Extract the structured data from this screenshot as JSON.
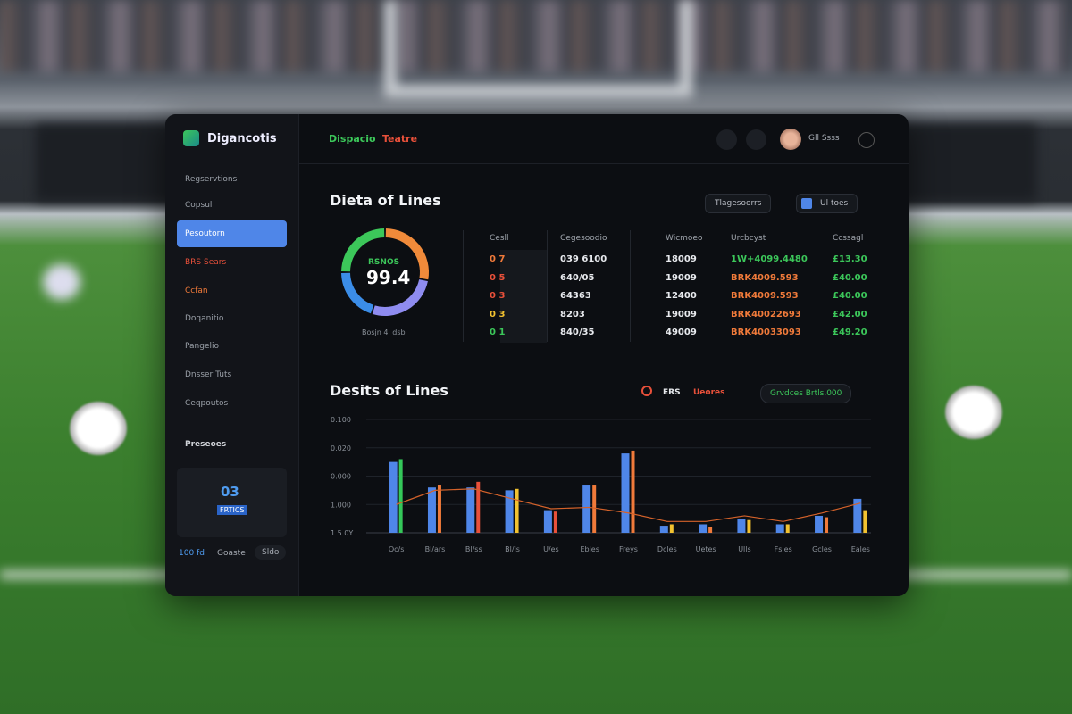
{
  "brand": "Digancotis",
  "header": {
    "title_a": "Dispacio",
    "title_b": "Teatre",
    "user": "Gll Ssss"
  },
  "sidebar": {
    "items": [
      "Regservtions",
      "Copsul",
      "Pesoutorn",
      "BRS Sears",
      "Ccfan",
      "Doqanitio",
      "Pangelio",
      "Dnsser Tuts",
      "Ceqpoutos"
    ],
    "section": "Preseoes",
    "card": {
      "value": "03",
      "label": "FRTICS"
    },
    "footer": [
      "100 fd",
      "Goaste",
      "Sldo"
    ]
  },
  "summary": {
    "title": "Dieta of Lines",
    "buttons": [
      "Tlagesoorrs",
      "Ul toes"
    ],
    "donut": {
      "label": "RSNOS",
      "value": 99.4,
      "caption": "Bosjn 4l dsb",
      "segments": [
        {
          "value": 28,
          "color": "#f08a3a"
        },
        {
          "value": 27,
          "color": "#8f8cf0"
        },
        {
          "value": 20,
          "color": "#3b8de8"
        },
        {
          "value": 25,
          "color": "#3cc75a"
        }
      ]
    }
  },
  "table": {
    "headers": [
      "Cesll",
      "Cegesoodio",
      "Wicmoeo",
      "Urcbcyst",
      "Ccssagl"
    ],
    "rows": [
      [
        "0 7",
        "039 6100",
        "18009",
        "1W+4099.4480",
        "£13.30"
      ],
      [
        "0 5",
        "640/05",
        "19009",
        "BRK4009.593",
        "£40.00"
      ],
      [
        "0 3",
        "64363",
        "12400",
        "BRK4009.593",
        "£40.00"
      ],
      [
        "0 3",
        "8203",
        "19009",
        "BRK40022693",
        "£42.00"
      ],
      [
        "0 1",
        "840/35",
        "49009",
        "BRK40033093",
        "£49.20"
      ]
    ]
  },
  "trend": {
    "title": "Desits of Lines",
    "dropdown": "Grvdces Brtls.000",
    "chart": {
      "type": "bar",
      "categories": [
        "Qc/s",
        "Bl/ars",
        "Bl/ss",
        "Bl/ls",
        "U/es",
        "Ebles",
        "Freys",
        "Dcles",
        "Uetes",
        "Ulls",
        "Fsles",
        "Gcles",
        "Eales"
      ],
      "series": [
        {
          "name": "ERS",
          "color": "#4f86e8",
          "values": [
            2.5,
            1.6,
            1.6,
            1.5,
            0.8,
            1.7,
            2.8,
            0.25,
            0.3,
            0.5,
            0.3,
            0.6,
            1.2
          ]
        },
        {
          "name": "Ueores",
          "colors": [
            "#34c759",
            "#f07a3a",
            "#e8503a",
            "#f2c230",
            "#e8503a",
            "#f07a3a",
            "#f07a3a",
            "#f2c230",
            "#f07a3a",
            "#f2c230",
            "#f2c230",
            "#f07a3a",
            "#f2c230"
          ],
          "values": [
            2.6,
            1.7,
            1.8,
            1.55,
            0.75,
            1.7,
            2.9,
            0.3,
            0.2,
            0.45,
            0.3,
            0.55,
            0.8
          ]
        }
      ],
      "line": {
        "color": "#d4622a",
        "values": [
          1.0,
          1.5,
          1.55,
          1.2,
          0.85,
          0.9,
          0.7,
          0.4,
          0.4,
          0.6,
          0.4,
          0.7,
          1.05
        ]
      },
      "ylim": [
        0,
        4
      ],
      "yticks": [
        {
          "value": 4,
          "label": "0.100"
        },
        {
          "value": 3,
          "label": "0.020"
        },
        {
          "value": 2,
          "label": "0.000"
        },
        {
          "value": 1,
          "label": "1.000"
        },
        {
          "value": 0,
          "label": "1.5 0Y"
        }
      ],
      "grid": true
    }
  }
}
